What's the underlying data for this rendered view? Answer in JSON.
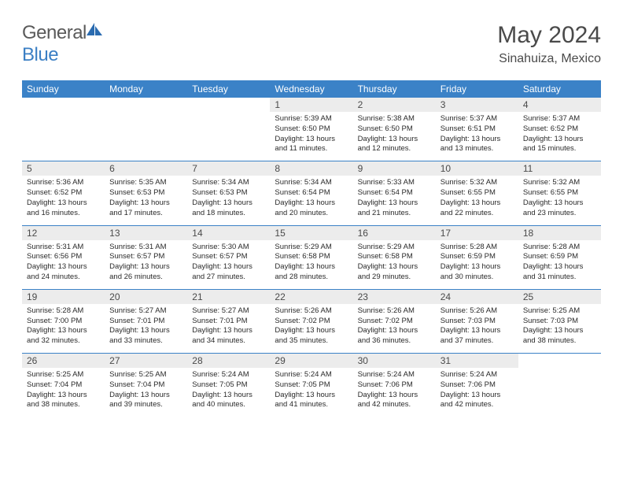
{
  "brand": {
    "part1": "General",
    "part2": "Blue"
  },
  "title": "May 2024",
  "location": "Sinahuiza, Mexico",
  "colors": {
    "header_bg": "#3b82c7",
    "header_text": "#ffffff",
    "daynum_bg": "#ececec",
    "text": "#4a4a4a",
    "page_bg": "#ffffff"
  },
  "dow": [
    "Sunday",
    "Monday",
    "Tuesday",
    "Wednesday",
    "Thursday",
    "Friday",
    "Saturday"
  ],
  "weeks": [
    [
      null,
      null,
      null,
      {
        "n": "1",
        "sr": "5:39 AM",
        "ss": "6:50 PM",
        "dl": "13 hours and 11 minutes."
      },
      {
        "n": "2",
        "sr": "5:38 AM",
        "ss": "6:50 PM",
        "dl": "13 hours and 12 minutes."
      },
      {
        "n": "3",
        "sr": "5:37 AM",
        "ss": "6:51 PM",
        "dl": "13 hours and 13 minutes."
      },
      {
        "n": "4",
        "sr": "5:37 AM",
        "ss": "6:52 PM",
        "dl": "13 hours and 15 minutes."
      }
    ],
    [
      {
        "n": "5",
        "sr": "5:36 AM",
        "ss": "6:52 PM",
        "dl": "13 hours and 16 minutes."
      },
      {
        "n": "6",
        "sr": "5:35 AM",
        "ss": "6:53 PM",
        "dl": "13 hours and 17 minutes."
      },
      {
        "n": "7",
        "sr": "5:34 AM",
        "ss": "6:53 PM",
        "dl": "13 hours and 18 minutes."
      },
      {
        "n": "8",
        "sr": "5:34 AM",
        "ss": "6:54 PM",
        "dl": "13 hours and 20 minutes."
      },
      {
        "n": "9",
        "sr": "5:33 AM",
        "ss": "6:54 PM",
        "dl": "13 hours and 21 minutes."
      },
      {
        "n": "10",
        "sr": "5:32 AM",
        "ss": "6:55 PM",
        "dl": "13 hours and 22 minutes."
      },
      {
        "n": "11",
        "sr": "5:32 AM",
        "ss": "6:55 PM",
        "dl": "13 hours and 23 minutes."
      }
    ],
    [
      {
        "n": "12",
        "sr": "5:31 AM",
        "ss": "6:56 PM",
        "dl": "13 hours and 24 minutes."
      },
      {
        "n": "13",
        "sr": "5:31 AM",
        "ss": "6:57 PM",
        "dl": "13 hours and 26 minutes."
      },
      {
        "n": "14",
        "sr": "5:30 AM",
        "ss": "6:57 PM",
        "dl": "13 hours and 27 minutes."
      },
      {
        "n": "15",
        "sr": "5:29 AM",
        "ss": "6:58 PM",
        "dl": "13 hours and 28 minutes."
      },
      {
        "n": "16",
        "sr": "5:29 AM",
        "ss": "6:58 PM",
        "dl": "13 hours and 29 minutes."
      },
      {
        "n": "17",
        "sr": "5:28 AM",
        "ss": "6:59 PM",
        "dl": "13 hours and 30 minutes."
      },
      {
        "n": "18",
        "sr": "5:28 AM",
        "ss": "6:59 PM",
        "dl": "13 hours and 31 minutes."
      }
    ],
    [
      {
        "n": "19",
        "sr": "5:28 AM",
        "ss": "7:00 PM",
        "dl": "13 hours and 32 minutes."
      },
      {
        "n": "20",
        "sr": "5:27 AM",
        "ss": "7:01 PM",
        "dl": "13 hours and 33 minutes."
      },
      {
        "n": "21",
        "sr": "5:27 AM",
        "ss": "7:01 PM",
        "dl": "13 hours and 34 minutes."
      },
      {
        "n": "22",
        "sr": "5:26 AM",
        "ss": "7:02 PM",
        "dl": "13 hours and 35 minutes."
      },
      {
        "n": "23",
        "sr": "5:26 AM",
        "ss": "7:02 PM",
        "dl": "13 hours and 36 minutes."
      },
      {
        "n": "24",
        "sr": "5:26 AM",
        "ss": "7:03 PM",
        "dl": "13 hours and 37 minutes."
      },
      {
        "n": "25",
        "sr": "5:25 AM",
        "ss": "7:03 PM",
        "dl": "13 hours and 38 minutes."
      }
    ],
    [
      {
        "n": "26",
        "sr": "5:25 AM",
        "ss": "7:04 PM",
        "dl": "13 hours and 38 minutes."
      },
      {
        "n": "27",
        "sr": "5:25 AM",
        "ss": "7:04 PM",
        "dl": "13 hours and 39 minutes."
      },
      {
        "n": "28",
        "sr": "5:24 AM",
        "ss": "7:05 PM",
        "dl": "13 hours and 40 minutes."
      },
      {
        "n": "29",
        "sr": "5:24 AM",
        "ss": "7:05 PM",
        "dl": "13 hours and 41 minutes."
      },
      {
        "n": "30",
        "sr": "5:24 AM",
        "ss": "7:06 PM",
        "dl": "13 hours and 42 minutes."
      },
      {
        "n": "31",
        "sr": "5:24 AM",
        "ss": "7:06 PM",
        "dl": "13 hours and 42 minutes."
      },
      null
    ]
  ],
  "labels": {
    "sunrise": "Sunrise:",
    "sunset": "Sunset:",
    "daylight": "Daylight:"
  }
}
